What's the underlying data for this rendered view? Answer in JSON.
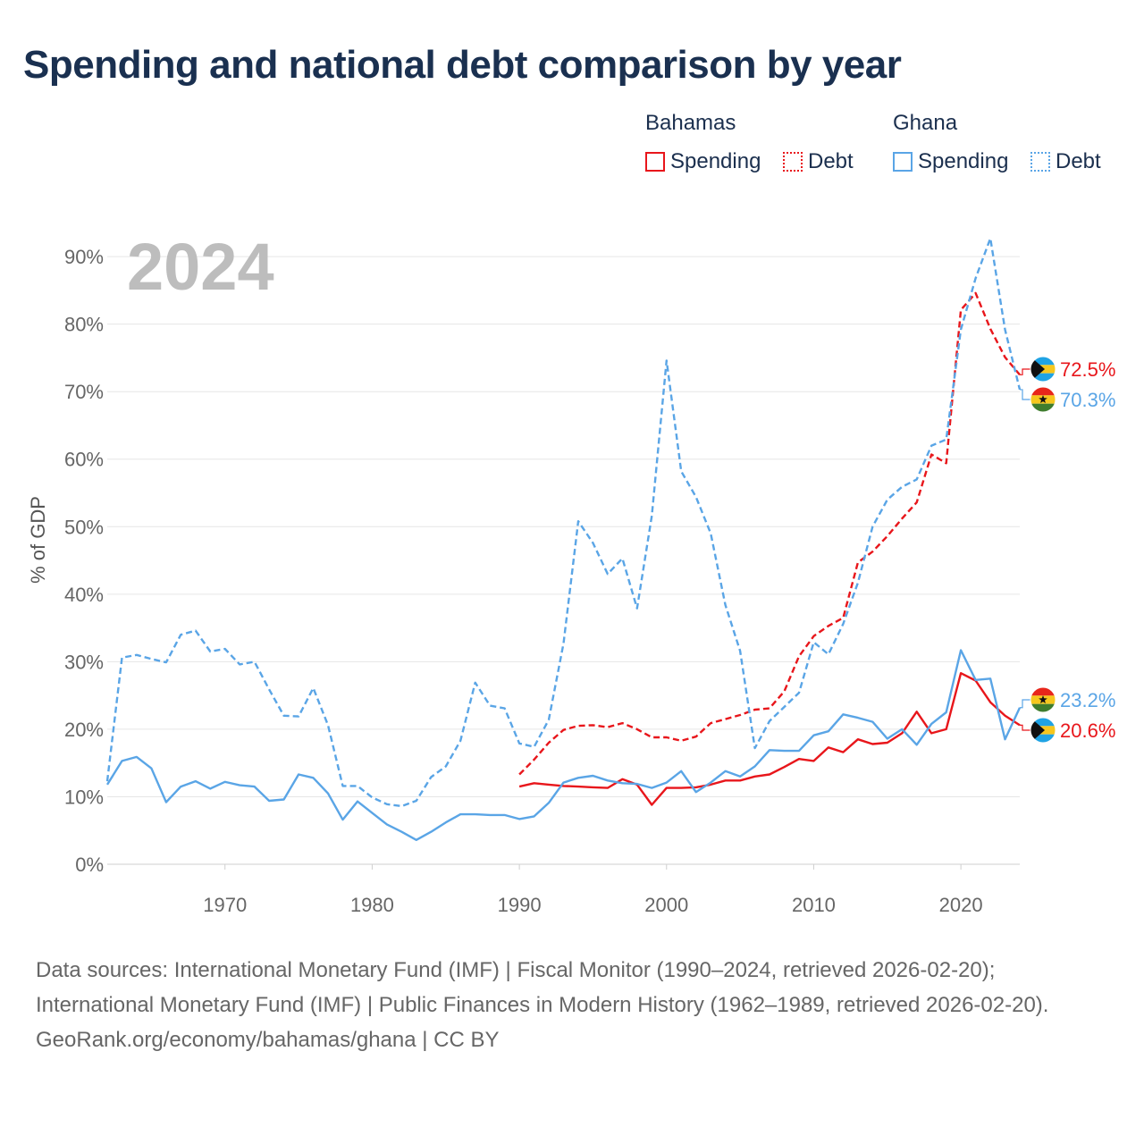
{
  "title": "Spending and national debt comparison by year",
  "legend": {
    "groups": [
      {
        "name": "Bahamas",
        "color": "#e8161b",
        "spending_label": "Spending",
        "debt_label": "Debt"
      },
      {
        "name": "Ghana",
        "color": "#5aa5e6",
        "spending_label": "Spending",
        "debt_label": "Debt"
      }
    ]
  },
  "footer": {
    "sources": "Data sources: International Monetary Fund (IMF) | Fiscal Monitor (1990–2024, retrieved 2026-02-20); International Monetary Fund (IMF) | Public Finances in Modern History (1962–1989, retrieved 2026-02-20).",
    "credit": "GeoRank.org/economy/bahamas/ghana | CC BY"
  },
  "chart_data": {
    "type": "line",
    "year_label": "2024",
    "ylabel": "% of GDP",
    "xlabel": "",
    "xlim": [
      1962,
      2024
    ],
    "ylim": [
      0,
      92
    ],
    "yticks": [
      0,
      10,
      20,
      30,
      40,
      50,
      60,
      70,
      80,
      90
    ],
    "ytick_labels": [
      "0%",
      "10%",
      "20%",
      "30%",
      "40%",
      "50%",
      "60%",
      "70%",
      "80%",
      "90%"
    ],
    "xticks": [
      1970,
      1980,
      1990,
      2000,
      2010,
      2020
    ],
    "xtick_labels": [
      "1970",
      "1980",
      "1990",
      "2000",
      "2010",
      "2020"
    ],
    "series": [
      {
        "name": "Bahamas Debt",
        "country": "Bahamas",
        "kind": "debt",
        "color": "#e8161b",
        "start_year": 1990,
        "values": [
          13.3,
          15.5,
          18.0,
          19.9,
          20.5,
          20.6,
          20.3,
          20.9,
          20.0,
          18.8,
          18.8,
          18.3,
          18.9,
          20.9,
          21.5,
          22.1,
          22.9,
          23.1,
          25.6,
          30.8,
          33.8,
          35.3,
          36.5,
          44.7,
          46.3,
          48.6,
          51.2,
          53.6,
          60.7,
          59.4,
          82.1,
          84.6,
          79.3,
          75.1,
          72.5
        ],
        "end_label": "72.5%"
      },
      {
        "name": "Ghana Debt",
        "country": "Ghana",
        "kind": "debt",
        "color": "#5aa5e6",
        "start_year": 1962,
        "values": [
          12.3,
          30.6,
          31.0,
          30.4,
          29.9,
          34.0,
          34.6,
          31.5,
          31.9,
          29.6,
          30.0,
          25.9,
          22.0,
          21.9,
          26.1,
          20.6,
          11.6,
          11.6,
          9.9,
          8.9,
          8.6,
          9.4,
          12.9,
          14.5,
          18.3,
          26.9,
          23.5,
          23.1,
          17.9,
          17.4,
          21.4,
          32.7,
          50.8,
          47.6,
          43.0,
          45.3,
          37.9,
          51.6,
          74.6,
          58.2,
          54.4,
          49.0,
          38.4,
          31.6,
          17.2,
          21.2,
          23.3,
          25.4,
          32.9,
          31.1,
          35.6,
          41.7,
          50.0,
          54.0,
          55.9,
          57.0,
          62.0,
          62.9,
          79.2,
          86.8,
          92.7,
          79.2,
          70.3
        ],
        "end_label": "70.3%"
      },
      {
        "name": "Bahamas Spending",
        "country": "Bahamas",
        "kind": "spending",
        "color": "#e8161b",
        "start_year": 1990,
        "values": [
          11.5,
          12.0,
          11.8,
          11.6,
          11.5,
          11.4,
          11.3,
          12.6,
          11.8,
          8.8,
          11.3,
          11.3,
          11.4,
          11.8,
          12.4,
          12.4,
          13.0,
          13.3,
          14.4,
          15.6,
          15.3,
          17.3,
          16.6,
          18.5,
          17.8,
          18.0,
          19.4,
          22.6,
          19.4,
          20.0,
          28.3,
          27.2,
          24.0,
          22.0,
          20.6
        ],
        "end_label": "20.6%"
      },
      {
        "name": "Ghana Spending",
        "country": "Ghana",
        "kind": "spending",
        "color": "#5aa5e6",
        "start_year": 1962,
        "values": [
          11.8,
          15.3,
          15.9,
          14.2,
          9.2,
          11.5,
          12.3,
          11.2,
          12.2,
          11.7,
          11.5,
          9.4,
          9.6,
          13.3,
          12.8,
          10.5,
          6.6,
          9.3,
          7.6,
          5.9,
          4.8,
          3.6,
          4.8,
          6.2,
          7.4,
          7.4,
          7.3,
          7.3,
          6.7,
          7.1,
          9.1,
          12.1,
          12.8,
          13.1,
          12.4,
          12.0,
          11.9,
          11.3,
          12.1,
          13.8,
          10.7,
          12.1,
          13.8,
          13.0,
          14.5,
          16.9,
          16.8,
          16.8,
          19.1,
          19.7,
          22.2,
          21.7,
          21.1,
          18.6,
          20.0,
          17.7,
          20.8,
          22.5,
          31.7,
          27.3,
          27.5,
          18.5,
          23.2
        ],
        "end_label": "23.2%"
      }
    ]
  }
}
